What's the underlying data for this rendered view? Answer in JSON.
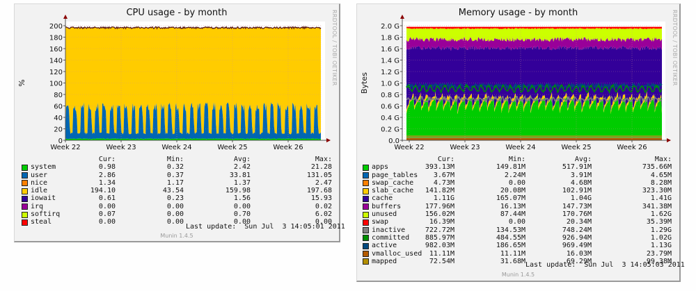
{
  "chart_data": [
    {
      "id": "cpu",
      "type": "area",
      "title": "CPU usage - by month",
      "ylabel": "%",
      "xlabel": "",
      "ylim": [
        0,
        200
      ],
      "yticks": [
        "0",
        "20",
        "40",
        "60",
        "80",
        "100",
        "120",
        "140",
        "160",
        "180",
        "200"
      ],
      "yvalues": [
        0,
        20,
        40,
        60,
        80,
        100,
        120,
        140,
        160,
        180,
        200
      ],
      "xticks": [
        "Week 22",
        "Week 23",
        "Week 24",
        "Week 25",
        "Week 26"
      ],
      "grid": true,
      "credit": "RRDTOOL / TOBI OETIKER",
      "pattern": {
        "days": 35,
        "user_peak": 60,
        "user_base": 8,
        "system": 2,
        "total": 198
      },
      "columns": [
        "Cur:",
        "Min:",
        "Avg:",
        "Max:"
      ],
      "legend": [
        {
          "name": "system",
          "color": "#00cc00",
          "cur": "0.98",
          "min": "0.32",
          "avg": "2.42",
          "max": "21.28"
        },
        {
          "name": "user",
          "color": "#0066b3",
          "cur": "2.86",
          "min": "0.37",
          "avg": "33.81",
          "max": "131.05"
        },
        {
          "name": "nice",
          "color": "#ff8000",
          "cur": "1.34",
          "min": "1.17",
          "avg": "1.37",
          "max": "2.47"
        },
        {
          "name": "idle",
          "color": "#ffcc00",
          "cur": "194.10",
          "min": "43.54",
          "avg": "159.98",
          "max": "197.68"
        },
        {
          "name": "iowait",
          "color": "#330099",
          "cur": "0.61",
          "min": "0.23",
          "avg": "1.56",
          "max": "15.93"
        },
        {
          "name": "irq",
          "color": "#990099",
          "cur": "0.00",
          "min": "0.00",
          "avg": "0.00",
          "max": "0.02"
        },
        {
          "name": "softirq",
          "color": "#ccff00",
          "cur": "0.07",
          "min": "0.00",
          "avg": "0.70",
          "max": "6.02"
        },
        {
          "name": "steal",
          "color": "#ff0000",
          "cur": "0.00",
          "min": "0.00",
          "avg": "0.00",
          "max": "0.00"
        }
      ],
      "last_update": "Last update:  Sun Jul  3 14:05:01 2011",
      "version": "Munin 1.4.5"
    },
    {
      "id": "mem",
      "type": "area",
      "title": "Memory usage - by month",
      "ylabel": "Bytes",
      "xlabel": "",
      "ylim": [
        0,
        2.0
      ],
      "yunit": "G",
      "yticks": [
        "0.0",
        "0.2 G",
        "0.4 G",
        "0.6 G",
        "0.8 G",
        "1.0 G",
        "1.2 G",
        "1.4 G",
        "1.6 G",
        "1.8 G",
        "2.0 G"
      ],
      "yvalues": [
        0,
        0.2,
        0.4,
        0.6,
        0.8,
        1.0,
        1.2,
        1.4,
        1.6,
        1.8,
        2.0
      ],
      "xticks": [
        "Week 22",
        "Week 23",
        "Week 24",
        "Week 25",
        "Week 26"
      ],
      "grid": true,
      "credit": "RRDTOOL / TOBI OETIKER",
      "pattern": {
        "days": 35,
        "apps_low": 0.38,
        "apps_high": 0.68,
        "cache_top": 1.65,
        "buffers_top": 1.8,
        "unused_top": 1.96,
        "total": 1.98,
        "committed": 0.9,
        "active": 0.95,
        "inactive": 0.7
      },
      "columns": [
        "Cur:",
        "Min:",
        "Avg:",
        "Max:"
      ],
      "legend": [
        {
          "name": "apps",
          "color": "#00cc00",
          "cur": "393.13M",
          "min": "149.81M",
          "avg": "517.91M",
          "max": "735.66M"
        },
        {
          "name": "page_tables",
          "color": "#0066b3",
          "cur": "3.67M",
          "min": "2.24M",
          "avg": "3.91M",
          "max": "4.65M"
        },
        {
          "name": "swap_cache",
          "color": "#ff8000",
          "cur": "4.73M",
          "min": "0.00",
          "avg": "4.68M",
          "max": "8.28M"
        },
        {
          "name": "slab_cache",
          "color": "#ffcc00",
          "cur": "141.82M",
          "min": "20.08M",
          "avg": "102.91M",
          "max": "323.30M"
        },
        {
          "name": "cache",
          "color": "#330099",
          "cur": "1.11G",
          "min": "165.07M",
          "avg": "1.04G",
          "max": "1.41G"
        },
        {
          "name": "buffers",
          "color": "#990099",
          "cur": "177.96M",
          "min": "16.13M",
          "avg": "147.73M",
          "max": "341.38M"
        },
        {
          "name": "unused",
          "color": "#ccff00",
          "cur": "156.02M",
          "min": "87.44M",
          "avg": "170.76M",
          "max": "1.62G"
        },
        {
          "name": "swap",
          "color": "#ff0000",
          "cur": "16.39M",
          "min": "0.00",
          "avg": "20.34M",
          "max": "35.39M"
        },
        {
          "name": "inactive",
          "color": "#808080",
          "cur": "722.72M",
          "min": "134.53M",
          "avg": "748.24M",
          "max": "1.29G"
        },
        {
          "name": "committed",
          "color": "#008f00",
          "cur": "885.97M",
          "min": "484.55M",
          "avg": "926.94M",
          "max": "1.02G"
        },
        {
          "name": "active",
          "color": "#00487d",
          "cur": "982.03M",
          "min": "186.65M",
          "avg": "969.49M",
          "max": "1.13G"
        },
        {
          "name": "vmalloc_used",
          "color": "#b35a00",
          "cur": "11.11M",
          "min": "11.11M",
          "avg": "16.03M",
          "max": "23.79M"
        },
        {
          "name": "mapped",
          "color": "#b38f00",
          "cur": "72.54M",
          "min": "31.68M",
          "avg": "69.29M",
          "max": "99.38M"
        }
      ],
      "last_update": "Last update:  Sun Jul  3 14:05:03 2011",
      "version": "Munin 1.4.5"
    }
  ]
}
